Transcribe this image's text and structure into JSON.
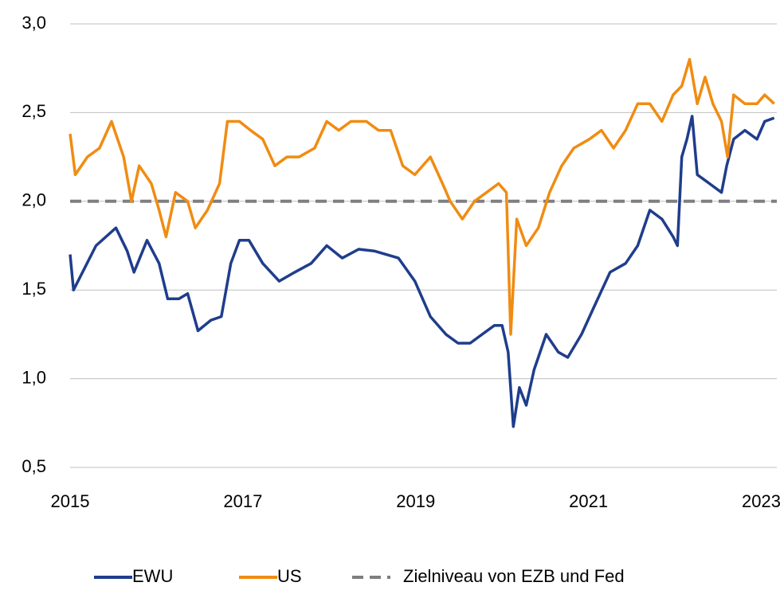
{
  "chart_data": {
    "type": "line",
    "xlim": [
      2015,
      2023.18
    ],
    "xticks": [
      2015,
      2017,
      2019,
      2021,
      2023
    ],
    "ylim": [
      0.5,
      3.0
    ],
    "yticks": [
      {
        "value": 0.5,
        "label": "0,5"
      },
      {
        "value": 1.0,
        "label": "1,0"
      },
      {
        "value": 1.5,
        "label": "1,5"
      },
      {
        "value": 2.0,
        "label": "2,0"
      },
      {
        "value": 2.5,
        "label": "2,5"
      },
      {
        "value": 3.0,
        "label": "3,0"
      }
    ],
    "grid": true,
    "legend": "bottom",
    "series": [
      {
        "name": "EWU",
        "color": "#1f3d8c",
        "x": [
          2015.0,
          2015.04,
          2015.3,
          2015.53,
          2015.66,
          2015.74,
          2015.89,
          2016.03,
          2016.13,
          2016.26,
          2016.36,
          2016.48,
          2016.63,
          2016.75,
          2016.86,
          2016.96,
          2017.07,
          2017.23,
          2017.42,
          2017.6,
          2017.79,
          2017.97,
          2018.15,
          2018.34,
          2018.52,
          2018.8,
          2018.99,
          2019.17,
          2019.35,
          2019.49,
          2019.63,
          2019.77,
          2019.91,
          2020.0,
          2020.07,
          2020.13,
          2020.2,
          2020.28,
          2020.37,
          2020.51,
          2020.65,
          2020.76,
          2020.92,
          2021.06,
          2021.25,
          2021.43,
          2021.57,
          2021.71,
          2021.85,
          2021.98,
          2022.03,
          2022.08,
          2022.14,
          2022.2,
          2022.26,
          2022.4,
          2022.54,
          2022.6,
          2022.68,
          2022.81,
          2022.95,
          2023.04,
          2023.15
        ],
        "values": [
          1.7,
          1.5,
          1.75,
          1.85,
          1.72,
          1.6,
          1.78,
          1.65,
          1.45,
          1.45,
          1.48,
          1.27,
          1.33,
          1.35,
          1.65,
          1.78,
          1.78,
          1.65,
          1.55,
          1.6,
          1.65,
          1.75,
          1.68,
          1.73,
          1.72,
          1.68,
          1.55,
          1.35,
          1.25,
          1.2,
          1.2,
          1.25,
          1.3,
          1.3,
          1.15,
          0.73,
          0.95,
          0.85,
          1.05,
          1.25,
          1.15,
          1.12,
          1.25,
          1.4,
          1.6,
          1.65,
          1.75,
          1.95,
          1.9,
          1.8,
          1.75,
          2.25,
          2.35,
          2.48,
          2.15,
          2.1,
          2.05,
          2.2,
          2.35,
          2.4,
          2.35,
          2.45,
          2.47
        ]
      },
      {
        "name": "US",
        "color": "#f08c12",
        "x": [
          2015.0,
          2015.06,
          2015.2,
          2015.34,
          2015.48,
          2015.62,
          2015.71,
          2015.8,
          2015.94,
          2016.03,
          2016.11,
          2016.22,
          2016.36,
          2016.45,
          2016.59,
          2016.73,
          2016.82,
          2016.96,
          2017.09,
          2017.23,
          2017.37,
          2017.51,
          2017.65,
          2017.83,
          2017.97,
          2018.11,
          2018.25,
          2018.43,
          2018.57,
          2018.71,
          2018.85,
          2018.99,
          2019.17,
          2019.31,
          2019.4,
          2019.54,
          2019.68,
          2019.82,
          2019.96,
          2020.05,
          2020.1,
          2020.17,
          2020.28,
          2020.42,
          2020.55,
          2020.69,
          2020.83,
          2021.01,
          2021.15,
          2021.29,
          2021.43,
          2021.57,
          2021.71,
          2021.85,
          2021.98,
          2022.08,
          2022.17,
          2022.26,
          2022.35,
          2022.44,
          2022.54,
          2022.61,
          2022.68,
          2022.81,
          2022.95,
          2023.04,
          2023.15
        ],
        "values": [
          2.38,
          2.15,
          2.25,
          2.3,
          2.45,
          2.25,
          2.0,
          2.2,
          2.1,
          1.95,
          1.8,
          2.05,
          2.0,
          1.85,
          1.95,
          2.1,
          2.45,
          2.45,
          2.4,
          2.35,
          2.2,
          2.25,
          2.25,
          2.3,
          2.45,
          2.4,
          2.45,
          2.45,
          2.4,
          2.4,
          2.2,
          2.15,
          2.25,
          2.1,
          2.0,
          1.9,
          2.0,
          2.05,
          2.1,
          2.05,
          1.25,
          1.9,
          1.75,
          1.85,
          2.05,
          2.2,
          2.3,
          2.35,
          2.4,
          2.3,
          2.4,
          2.55,
          2.55,
          2.45,
          2.6,
          2.65,
          2.8,
          2.55,
          2.7,
          2.55,
          2.45,
          2.25,
          2.6,
          2.55,
          2.55,
          2.6,
          2.55
        ]
      }
    ],
    "reference_line": {
      "name": "Zielniveau von EZB und Fed",
      "value": 2.0,
      "color": "#7f7f7f"
    }
  }
}
